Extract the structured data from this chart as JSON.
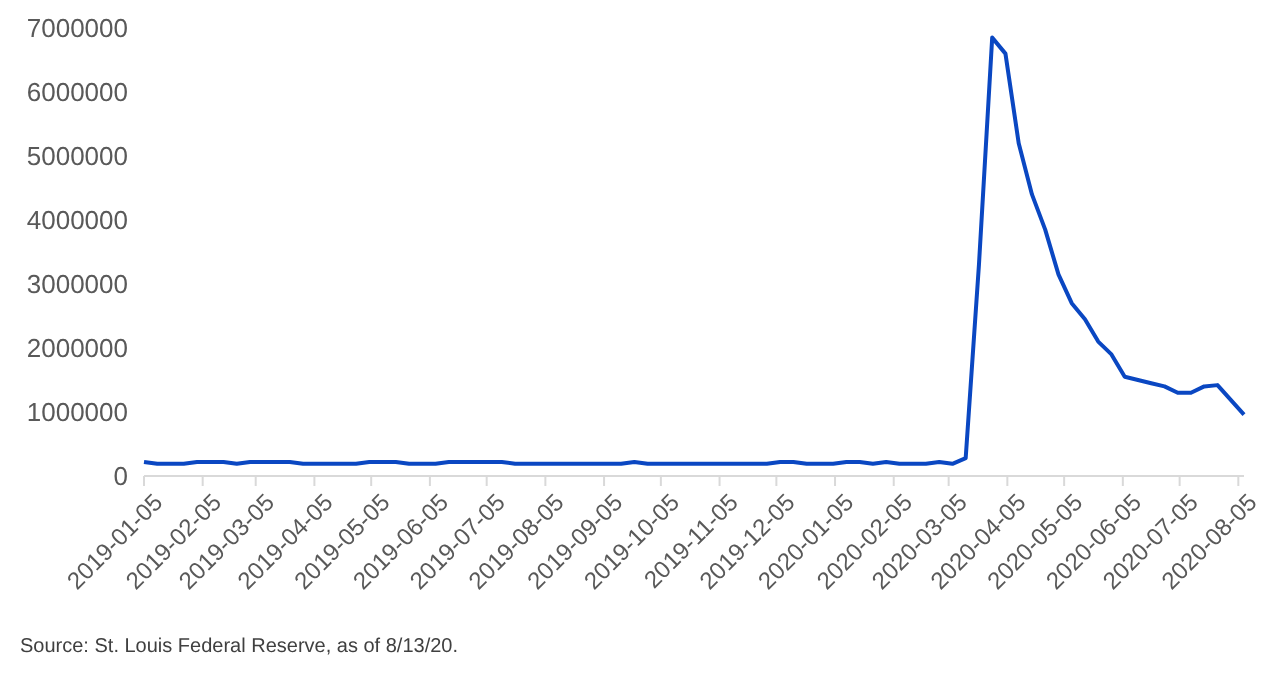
{
  "chart_data": {
    "type": "line",
    "annotations": [
      "Source: St. Louis Federal Reserve, as of 8/13/20."
    ],
    "x": [
      "2019-01-05",
      "2019-01-12",
      "2019-01-19",
      "2019-01-26",
      "2019-02-02",
      "2019-02-09",
      "2019-02-16",
      "2019-02-23",
      "2019-03-02",
      "2019-03-09",
      "2019-03-16",
      "2019-03-23",
      "2019-03-30",
      "2019-04-06",
      "2019-04-13",
      "2019-04-20",
      "2019-04-27",
      "2019-05-04",
      "2019-05-11",
      "2019-05-18",
      "2019-05-25",
      "2019-06-01",
      "2019-06-08",
      "2019-06-15",
      "2019-06-22",
      "2019-06-29",
      "2019-07-06",
      "2019-07-13",
      "2019-07-20",
      "2019-07-27",
      "2019-08-03",
      "2019-08-10",
      "2019-08-17",
      "2019-08-24",
      "2019-08-31",
      "2019-09-07",
      "2019-09-14",
      "2019-09-21",
      "2019-09-28",
      "2019-10-05",
      "2019-10-12",
      "2019-10-19",
      "2019-10-26",
      "2019-11-02",
      "2019-11-09",
      "2019-11-16",
      "2019-11-23",
      "2019-11-30",
      "2019-12-07",
      "2019-12-14",
      "2019-12-21",
      "2019-12-28",
      "2020-01-04",
      "2020-01-11",
      "2020-01-18",
      "2020-01-25",
      "2020-02-01",
      "2020-02-08",
      "2020-02-15",
      "2020-02-22",
      "2020-02-29",
      "2020-03-07",
      "2020-03-14",
      "2020-03-21",
      "2020-03-28",
      "2020-04-04",
      "2020-04-11",
      "2020-04-18",
      "2020-04-25",
      "2020-05-02",
      "2020-05-09",
      "2020-05-16",
      "2020-05-23",
      "2020-05-30",
      "2020-06-06",
      "2020-06-13",
      "2020-06-20",
      "2020-06-27",
      "2020-07-04",
      "2020-07-11",
      "2020-07-18",
      "2020-07-25",
      "2020-08-01",
      "2020-08-08"
    ],
    "series": [
      {
        "color": "#0a47c2",
        "values": [
          220000,
          190000,
          190000,
          190000,
          220000,
          220000,
          220000,
          190000,
          220000,
          220000,
          220000,
          220000,
          190000,
          190000,
          190000,
          190000,
          190000,
          220000,
          220000,
          220000,
          190000,
          190000,
          190000,
          220000,
          220000,
          220000,
          220000,
          220000,
          190000,
          190000,
          190000,
          190000,
          190000,
          190000,
          190000,
          190000,
          190000,
          220000,
          190000,
          190000,
          190000,
          190000,
          190000,
          190000,
          190000,
          190000,
          190000,
          190000,
          220000,
          220000,
          190000,
          190000,
          190000,
          220000,
          220000,
          190000,
          220000,
          190000,
          190000,
          190000,
          220000,
          190000,
          280000,
          3300000,
          6850000,
          6600000,
          5200000,
          4400000,
          3850000,
          3150000,
          2700000,
          2450000,
          2100000,
          1900000,
          1550000,
          1500000,
          1450000,
          1400000,
          1300000,
          1300000,
          1400000,
          1420000,
          1190000,
          960000
        ]
      }
    ],
    "xlim": [
      "2019-01-05",
      "2020-08-08"
    ],
    "xticks": [
      "2019-01-05",
      "2019-02-05",
      "2019-03-05",
      "2019-04-05",
      "2019-05-05",
      "2019-06-05",
      "2019-07-05",
      "2019-08-05",
      "2019-09-05",
      "2019-10-05",
      "2019-11-05",
      "2019-12-05",
      "2020-01-05",
      "2020-02-05",
      "2020-03-05",
      "2020-04-05",
      "2020-05-05",
      "2020-06-05",
      "2020-07-05",
      "2020-08-05"
    ],
    "ylim": [
      0,
      7000000
    ],
    "yticks": [
      0,
      1000000,
      2000000,
      3000000,
      4000000,
      5000000,
      6000000,
      7000000
    ],
    "grid": false,
    "marker": "none",
    "line_style": "solid"
  }
}
